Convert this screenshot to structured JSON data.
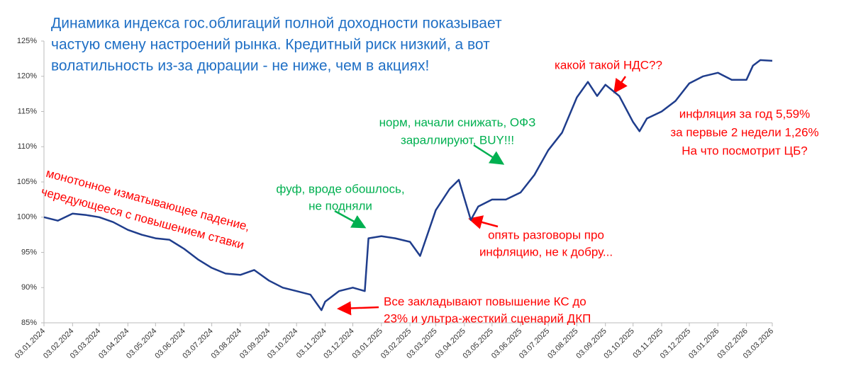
{
  "chart_data": {
    "type": "line",
    "title_lines": [
      "Динамика индекса гос.облигаций полной доходности показывает",
      "частую смену настроений рынка. Кредитный риск низкий, а вот",
      "волатильность из-за дюрации - не ниже, чем в акциях!"
    ],
    "x": [
      "03.01.2024",
      "18.01.2024",
      "03.02.2024",
      "18.02.2024",
      "03.03.2024",
      "18.03.2024",
      "03.04.2024",
      "18.04.2024",
      "03.05.2024",
      "18.05.2024",
      "03.06.2024",
      "18.06.2024",
      "03.07.2024",
      "18.07.2024",
      "03.08.2024",
      "18.08.2024",
      "03.09.2024",
      "18.09.2024",
      "03.10.2024",
      "18.10.2024",
      "30.10.2024",
      "03.11.2024",
      "18.11.2024",
      "03.12.2024",
      "16.12.2024",
      "20.12.2024",
      "03.01.2025",
      "18.01.2025",
      "03.02.2025",
      "14.02.2025",
      "03.03.2025",
      "18.03.2025",
      "28.03.2025",
      "10.04.2025",
      "18.04.2025",
      "03.05.2025",
      "18.05.2025",
      "03.06.2025",
      "18.06.2025",
      "03.07.2025",
      "18.07.2025",
      "03.08.2025",
      "15.08.2025",
      "25.08.2025",
      "03.09.2025",
      "18.09.2025",
      "03.10.2025",
      "10.10.2025",
      "18.10.2025",
      "03.11.2025",
      "18.11.2025",
      "03.12.2025",
      "18.12.2025",
      "03.01.2026",
      "18.01.2026",
      "03.02.2026",
      "10.02.2026",
      "18.02.2026",
      "03.03.2026"
    ],
    "values": [
      100,
      99.5,
      100.5,
      100.3,
      100,
      99.3,
      98.2,
      97.5,
      97,
      96.8,
      95.5,
      94,
      92.8,
      92,
      91.8,
      92.5,
      91,
      90,
      89.5,
      89,
      86.8,
      88,
      89.5,
      90,
      89.5,
      97,
      97.3,
      97,
      96.5,
      94.5,
      101,
      104,
      105.3,
      99.6,
      101.5,
      102.5,
      102.5,
      103.5,
      106,
      109.5,
      112,
      117,
      119.2,
      117.2,
      118.8,
      117.2,
      113.5,
      112.2,
      114,
      115,
      116.5,
      119,
      120,
      120.5,
      119.5,
      119.5,
      121.5,
      122.3,
      122.2
    ],
    "color": "#1f3d8c",
    "xlim": [
      "03.01.2024",
      "03.03.2026"
    ],
    "xticks": [
      "03.01.2024",
      "03.02.2024",
      "03.03.2024",
      "03.04.2024",
      "03.05.2024",
      "03.06.2024",
      "03.07.2024",
      "03.08.2024",
      "03.09.2024",
      "03.10.2024",
      "03.11.2024",
      "03.12.2024",
      "03.01.2025",
      "03.02.2025",
      "03.03.2025",
      "03.04.2025",
      "03.05.2025",
      "03.06.2025",
      "03.07.2025",
      "03.08.2025",
      "03.09.2025",
      "03.10.2025",
      "03.11.2025",
      "03.12.2025",
      "03.01.2026",
      "03.02.2026",
      "03.03.2026"
    ],
    "ylim": [
      85,
      125
    ],
    "yticks": [
      {
        "value": 85,
        "label": "85%"
      },
      {
        "value": 90,
        "label": "90%"
      },
      {
        "value": 95,
        "label": "95%"
      },
      {
        "value": 100,
        "label": "100%"
      },
      {
        "value": 105,
        "label": "105%"
      },
      {
        "value": 110,
        "label": "110%"
      },
      {
        "value": 115,
        "label": "115%"
      },
      {
        "value": 120,
        "label": "120%"
      },
      {
        "value": 125,
        "label": "125%"
      }
    ],
    "title_color": "#1f6fc5",
    "annotations": [
      {
        "lines": [
          "монотонное изматывающее падение,",
          "чередующееся с повышением ставки"
        ],
        "color": "#ff0000"
      },
      {
        "lines": [
          "фуф, вроде обошлось,",
          "не подняли"
        ],
        "color": "#00b050"
      },
      {
        "lines": [
          "норм, начали снижать, ОФЗ",
          "зараллируют, BUY!!!"
        ],
        "color": "#00b050"
      },
      {
        "lines": [
          "какой такой НДС??"
        ],
        "color": "#ff0000"
      },
      {
        "lines": [
          "инфляция за год 5,59%",
          "за первые 2 недели 1,26%",
          "На что посмотрит ЦБ?"
        ],
        "color": "#ff0000"
      },
      {
        "lines": [
          "опять разговоры про",
          "инфляцию, не к добру..."
        ],
        "color": "#ff0000"
      },
      {
        "lines": [
          "Все закладывают повышение КС до",
          "23% и ультра-жесткий сценарий ДКП"
        ],
        "color": "#ff0000"
      }
    ]
  }
}
